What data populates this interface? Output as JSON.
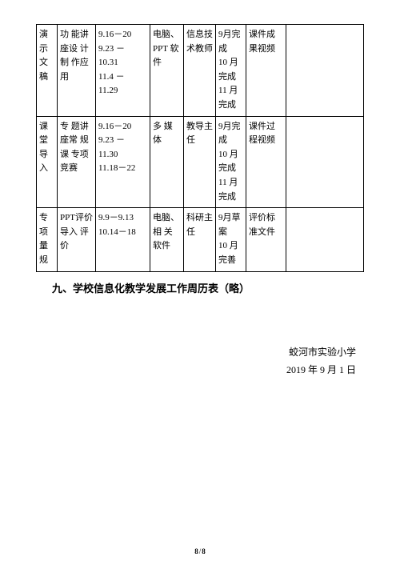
{
  "table": {
    "rows": [
      {
        "c1": "演示文稿",
        "c2": "功 能讲 座设 计制 作应用",
        "c3": "9.16－20\n9.23－10.31\n11.4－11.29",
        "c4": "电脑、PPT 软件",
        "c5": "信息技术教师",
        "c6": "9月完成\n10月完成\n11月完成",
        "c7": "课件成果视频",
        "c8": ""
      },
      {
        "c1": "课堂导入",
        "c2": "专 题讲 座常 规课 专项 竞赛",
        "c3": "9.16－20\n9.23－11.30\n11.18－22",
        "c4": "多 媒体",
        "c5": "教导主任",
        "c6": "9月完成\n10月完成\n11月完成",
        "c7": "课件过程视频",
        "c8": ""
      },
      {
        "c1": "专项量规",
        "c2": "PPT评价 导入 评价",
        "c3": "9.9－9.13\n10.14－18",
        "c4": "电脑、相 关软件",
        "c5": "科研主任",
        "c6": "9月草案\n10月完善",
        "c7": "评价标准文件",
        "c8": ""
      }
    ]
  },
  "heading": "九、学校信息化教学发展工作周历表（略）",
  "signoff": {
    "org": "蛟河市实验小学",
    "date": "2019 年 9 月 1 日"
  },
  "footer": {
    "page": "8",
    "total": "8"
  }
}
